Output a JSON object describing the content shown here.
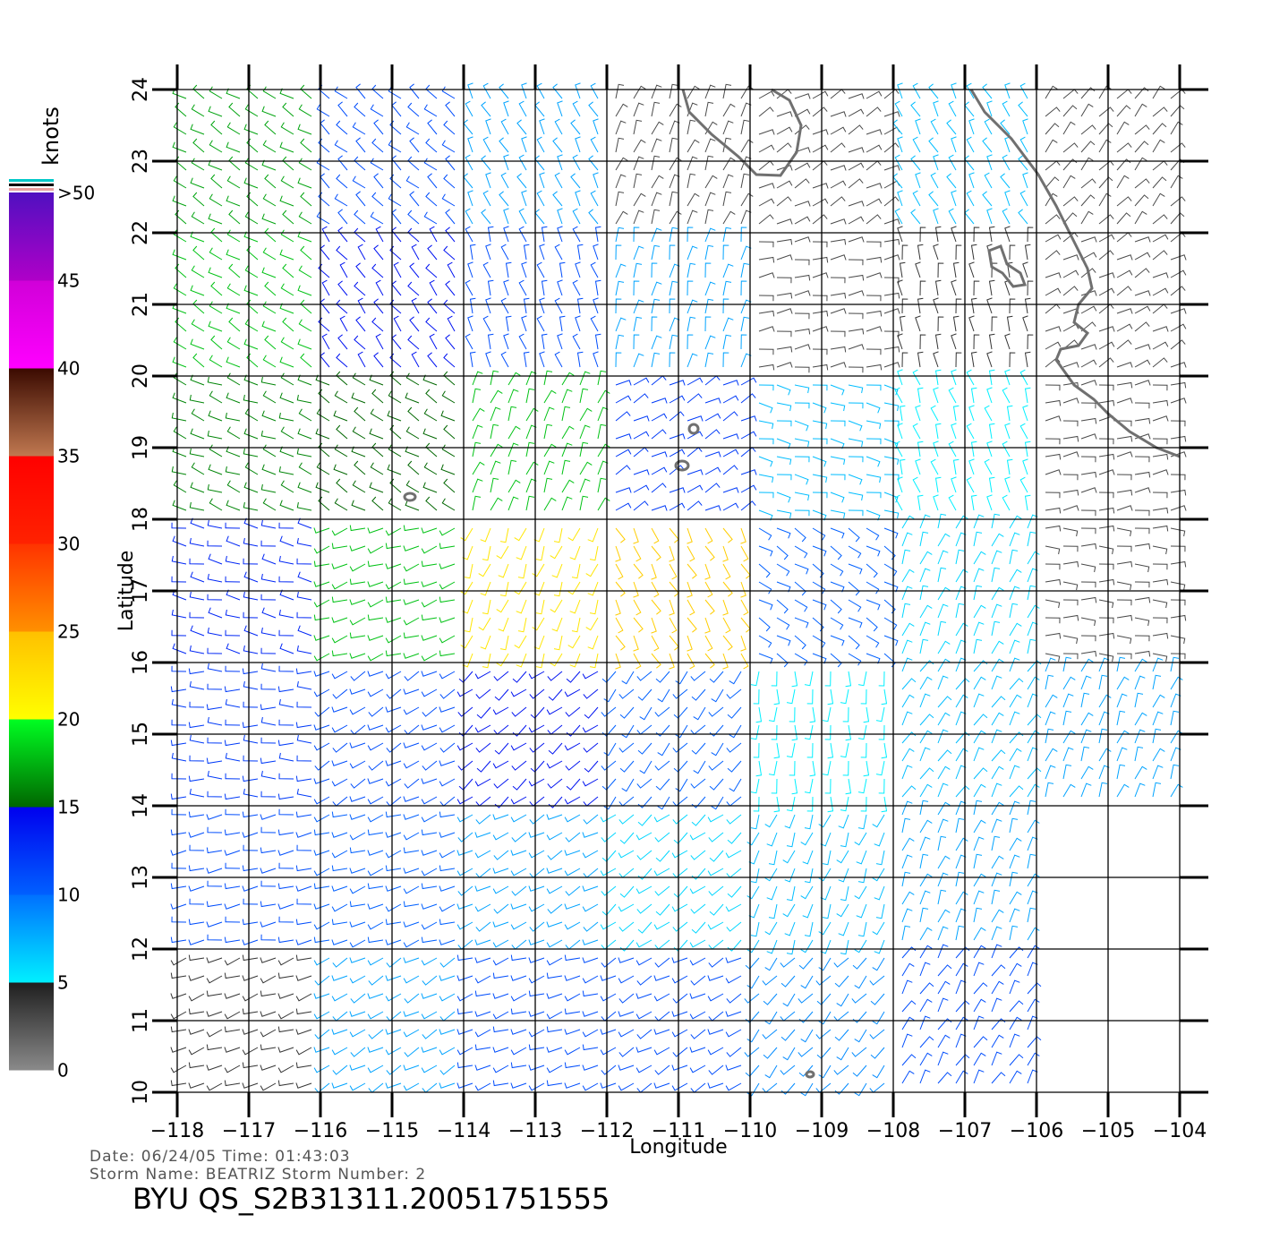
{
  "chart_data": {
    "type": "wind_barb",
    "x_label": "Longitude",
    "y_label": "Latitude",
    "info_lines": [
      "Date:  06/24/05   Time:  01:43:03",
      "Storm  Name:  BEATRIZ    Storm  Number:  2"
    ],
    "caption": "BYU  QS_S2B31311.20051751555",
    "xlim": [
      -118,
      -104
    ],
    "ylim": [
      10,
      24
    ],
    "xticks": [
      {
        "value": -118,
        "label": "−118"
      },
      {
        "value": -117,
        "label": "−117"
      },
      {
        "value": -116,
        "label": "−116"
      },
      {
        "value": -115,
        "label": "−115"
      },
      {
        "value": -114,
        "label": "−114"
      },
      {
        "value": -113,
        "label": "−113"
      },
      {
        "value": -112,
        "label": "−112"
      },
      {
        "value": -111,
        "label": "−111"
      },
      {
        "value": -110,
        "label": "−110"
      },
      {
        "value": -109,
        "label": "−109"
      },
      {
        "value": -108,
        "label": "−108"
      },
      {
        "value": -107,
        "label": "−107"
      },
      {
        "value": -106,
        "label": "−106"
      },
      {
        "value": -105,
        "label": "−105"
      },
      {
        "value": -104,
        "label": "−104"
      }
    ],
    "yticks": [
      10,
      11,
      12,
      13,
      14,
      15,
      16,
      17,
      18,
      19,
      20,
      21,
      22,
      23,
      24
    ],
    "grid": true,
    "colorbar": {
      "label": "knots",
      "range": [
        0,
        50
      ],
      "ticks": [
        0,
        5,
        10,
        15,
        20,
        25,
        30,
        35,
        40,
        45,
        {
          "value": 50,
          "label": ">50"
        }
      ],
      "bands": [
        {
          "from": 0,
          "to": 5,
          "colors": [
            "#8a8a8a",
            "#1e1e1e"
          ]
        },
        {
          "from": 5,
          "to": 10,
          "colors": [
            "#00f0ff",
            "#0070ff"
          ]
        },
        {
          "from": 10,
          "to": 15,
          "colors": [
            "#0060ff",
            "#0000ee"
          ]
        },
        {
          "from": 15,
          "to": 20,
          "colors": [
            "#006600",
            "#00ff22"
          ]
        },
        {
          "from": 20,
          "to": 25,
          "colors": [
            "#ffff00",
            "#ffc000"
          ]
        },
        {
          "from": 25,
          "to": 30,
          "colors": [
            "#ff9000",
            "#ff3300"
          ]
        },
        {
          "from": 30,
          "to": 35,
          "colors": [
            "#ff2200",
            "#ff0000"
          ]
        },
        {
          "from": 35,
          "to": 40,
          "colors": [
            "#c07850",
            "#3a0a00"
          ]
        },
        {
          "from": 40,
          "to": 45,
          "colors": [
            "#ff00ff",
            "#d000d8"
          ]
        },
        {
          "from": 45,
          "to": 50,
          "colors": [
            "#b000c8",
            "#5010c0"
          ]
        }
      ]
    },
    "wind": {
      "lons": [
        -117,
        -115,
        -113,
        -111,
        -109,
        -107,
        -105
      ],
      "lats": [
        23,
        21,
        19,
        17,
        15,
        13,
        11
      ],
      "speed": [
        [
          17,
          11,
          8,
          3,
          3,
          7,
          3
        ],
        [
          18,
          14,
          11,
          8,
          3,
          4,
          3
        ],
        [
          16,
          15,
          18,
          12,
          7,
          5,
          3
        ],
        [
          13,
          18,
          22,
          24,
          10,
          6,
          3
        ],
        [
          12,
          11,
          14,
          10,
          5,
          7,
          8
        ],
        [
          11,
          10,
          8,
          6,
          7,
          8,
          null
        ],
        [
          4,
          8,
          11,
          11,
          9,
          11,
          null
        ]
      ],
      "direction": [
        [
          300,
          310,
          330,
          20,
          60,
          330,
          40
        ],
        [
          300,
          320,
          340,
          10,
          80,
          350,
          60
        ],
        [
          290,
          300,
          20,
          60,
          100,
          340,
          80
        ],
        [
          280,
          250,
          200,
          150,
          120,
          20,
          90
        ],
        [
          270,
          240,
          230,
          220,
          180,
          30,
          20
        ],
        [
          260,
          250,
          240,
          230,
          200,
          20,
          null
        ],
        [
          250,
          240,
          250,
          240,
          220,
          30,
          null
        ]
      ]
    }
  }
}
